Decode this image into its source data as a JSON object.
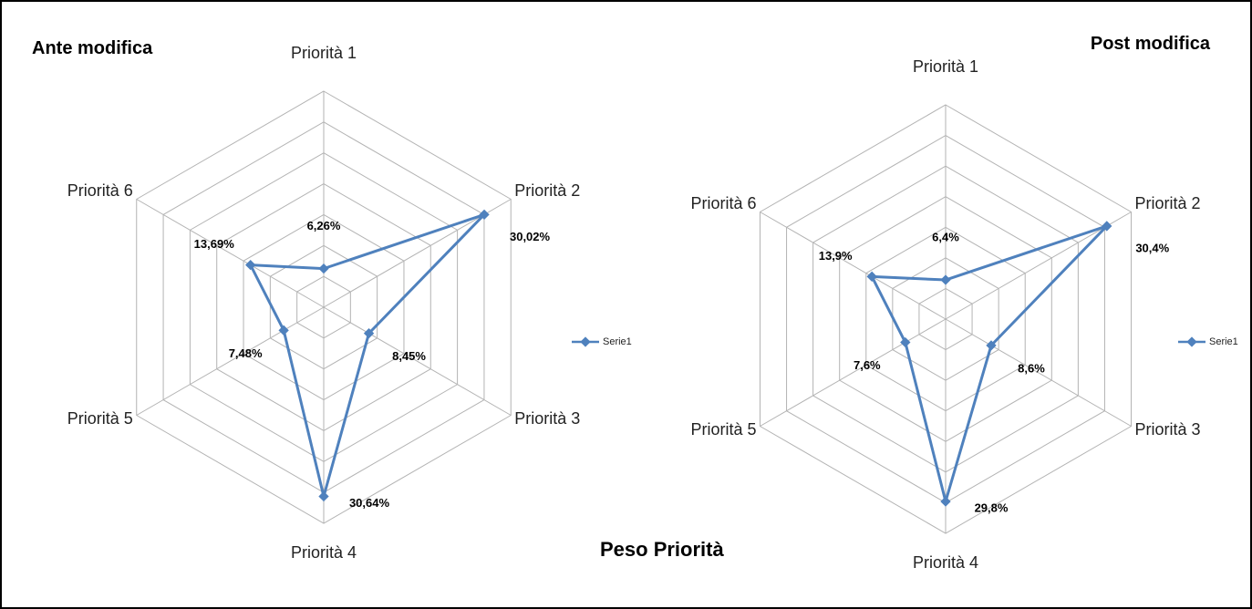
{
  "title": "Peso Priorità",
  "chart_data": [
    {
      "type": "radar",
      "title": "Ante modifica",
      "categories": [
        "Priorità 1",
        "Priorità 2",
        "Priorità 3",
        "Priorità 4",
        "Priorità 5",
        "Priorità 6"
      ],
      "series": [
        {
          "name": "Serie1",
          "color": "#4f81bd",
          "values": [
            6.26,
            30.02,
            8.45,
            30.64,
            7.48,
            13.69
          ],
          "value_labels": [
            "6,26%",
            "30,02%",
            "8,45%",
            "30,64%",
            "7,48%",
            "13,69%"
          ]
        }
      ],
      "rlim": [
        0,
        35
      ],
      "rticks": [
        0,
        5,
        10,
        15,
        20,
        25,
        30,
        35
      ],
      "grid": true,
      "legend": "right"
    },
    {
      "type": "radar",
      "title": "Post modifica",
      "categories": [
        "Priorità 1",
        "Priorità 2",
        "Priorità 3",
        "Priorità 4",
        "Priorità 5",
        "Priorità 6"
      ],
      "series": [
        {
          "name": "Serie1",
          "color": "#4f81bd",
          "values": [
            6.4,
            30.4,
            8.6,
            29.8,
            7.6,
            13.9
          ],
          "value_labels": [
            "6,4%",
            "30,4%",
            "8,6%",
            "29,8%",
            "7,6%",
            "13,9%"
          ]
        }
      ],
      "rlim": [
        0,
        35
      ],
      "rticks": [
        0,
        5,
        10,
        15,
        20,
        25,
        30,
        35
      ],
      "grid": true,
      "legend": "right"
    }
  ]
}
